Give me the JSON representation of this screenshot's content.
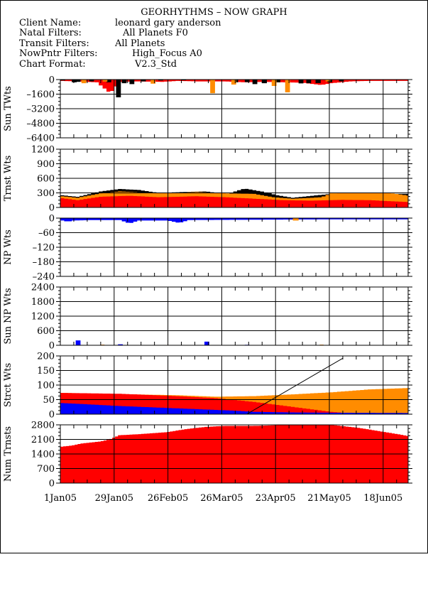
{
  "header": {
    "title": "GEORHYTHMS – NOW GRAPH",
    "rows": [
      {
        "label": "Client Name:",
        "value": "leonard gary anderson"
      },
      {
        "label": "Natal Filters:",
        "value": "All Planets F0"
      },
      {
        "label": "Transit Filters:",
        "value": "All Planets"
      },
      {
        "label": "NowPntr Filters:",
        "value": "High_Focus A0"
      },
      {
        "label": "Chart Format:",
        "value": "V2.3_Std"
      }
    ]
  },
  "colors": {
    "red": "#ff0000",
    "orange": "#ff8c00",
    "black": "#000000",
    "blue": "#0000ff",
    "grid": "#000000"
  },
  "chart_data": {
    "type": "area",
    "x_tick_labels": [
      "1Jan05",
      "29Jan05",
      "26Feb05",
      "26Mar05",
      "23Apr05",
      "21May05",
      "18Jun05"
    ],
    "x_range_days": [
      0,
      181
    ],
    "panels": [
      {
        "id": "sun-twts",
        "ylabel": "Sun TWts",
        "ylim": [
          -6400,
          0
        ],
        "yticks": [
          0,
          -1600,
          -3200,
          -4800,
          -6400
        ],
        "tick_labels": [
          "0",
          "–1600",
          "–3200",
          "–4800",
          "–6400"
        ]
      },
      {
        "id": "trnst-wts",
        "ylabel": "Trnst Wts",
        "ylim": [
          0,
          1200
        ],
        "yticks": [
          1200,
          900,
          600,
          300,
          0
        ],
        "tick_labels": [
          "1200",
          "900",
          "600",
          "300",
          "0"
        ]
      },
      {
        "id": "np-wts",
        "ylabel": "NP Wts",
        "ylim": [
          -240,
          0
        ],
        "yticks": [
          0,
          -60,
          -120,
          -180,
          -240
        ],
        "tick_labels": [
          "0",
          "–60",
          "–120",
          "–180",
          "–240"
        ]
      },
      {
        "id": "sun-np-wts",
        "ylabel": "Sun NP Wts",
        "ylim": [
          0,
          2400
        ],
        "yticks": [
          2400,
          1800,
          1200,
          600,
          0
        ],
        "tick_labels": [
          "2400",
          "1800",
          "1200",
          "600",
          "0"
        ]
      },
      {
        "id": "strct-wts",
        "ylabel": "Strct Wts",
        "ylim": [
          0,
          200
        ],
        "yticks": [
          200,
          150,
          100,
          50,
          0
        ],
        "tick_labels": [
          "200",
          "150",
          "100",
          "50",
          "0"
        ]
      },
      {
        "id": "num-trnsts",
        "ylabel": "Num Trnsts",
        "ylim": [
          0,
          2800
        ],
        "yticks": [
          2800,
          2100,
          1400,
          700,
          0
        ],
        "tick_labels": [
          "2800",
          "2100",
          "1400",
          "700",
          "0"
        ]
      }
    ],
    "sun_twts": {
      "red": [
        [
          0,
          -150
        ],
        [
          7,
          -200
        ],
        [
          18,
          -300
        ],
        [
          25,
          -1500
        ],
        [
          30,
          -250
        ],
        [
          38,
          -200
        ],
        [
          52,
          -250
        ],
        [
          60,
          -150
        ],
        [
          70,
          -200
        ],
        [
          85,
          -200
        ],
        [
          95,
          -300
        ],
        [
          105,
          -250
        ],
        [
          115,
          -300
        ],
        [
          125,
          -350
        ],
        [
          135,
          -600
        ],
        [
          140,
          -400
        ],
        [
          150,
          -200
        ],
        [
          160,
          -150
        ],
        [
          170,
          -150
        ],
        [
          181,
          -150
        ]
      ],
      "black_bars": [
        [
          0,
          -100
        ],
        [
          6,
          -300
        ],
        [
          8,
          -250
        ],
        [
          15,
          -200
        ],
        [
          24,
          -300
        ],
        [
          29,
          -1950
        ],
        [
          32,
          -400
        ],
        [
          36,
          -500
        ],
        [
          42,
          -200
        ],
        [
          51,
          -100
        ],
        [
          63,
          -80
        ],
        [
          90,
          -300
        ],
        [
          96,
          -280
        ],
        [
          100,
          -500
        ],
        [
          105,
          -400
        ],
        [
          112,
          -300
        ],
        [
          124,
          -420
        ],
        [
          128,
          -400
        ],
        [
          133,
          -380
        ],
        [
          139,
          -300
        ],
        [
          145,
          -200
        ]
      ],
      "orange_bars": [
        [
          11,
          -400
        ],
        [
          22,
          -220
        ],
        [
          47,
          -450
        ],
        [
          78,
          -1500
        ],
        [
          89,
          -550
        ],
        [
          110,
          -700
        ],
        [
          117,
          -1400
        ],
        [
          138,
          -200
        ]
      ]
    },
    "trnst_wts": {
      "red": [
        [
          0,
          190
        ],
        [
          8,
          150
        ],
        [
          20,
          220
        ],
        [
          35,
          240
        ],
        [
          50,
          210
        ],
        [
          70,
          230
        ],
        [
          85,
          210
        ],
        [
          100,
          180
        ],
        [
          115,
          150
        ],
        [
          130,
          140
        ],
        [
          145,
          155
        ],
        [
          160,
          150
        ],
        [
          170,
          130
        ],
        [
          181,
          110
        ]
      ],
      "orange": [
        [
          0,
          230
        ],
        [
          8,
          200
        ],
        [
          20,
          290
        ],
        [
          30,
          330
        ],
        [
          45,
          300
        ],
        [
          60,
          300
        ],
        [
          70,
          320
        ],
        [
          85,
          290
        ],
        [
          100,
          280
        ],
        [
          110,
          210
        ],
        [
          120,
          180
        ],
        [
          135,
          210
        ],
        [
          140,
          290
        ],
        [
          155,
          300
        ],
        [
          170,
          300
        ],
        [
          181,
          240
        ]
      ],
      "black": [
        [
          0,
          250
        ],
        [
          8,
          220
        ],
        [
          20,
          330
        ],
        [
          30,
          380
        ],
        [
          40,
          360
        ],
        [
          50,
          300
        ],
        [
          65,
          320
        ],
        [
          75,
          330
        ],
        [
          85,
          270
        ],
        [
          95,
          390
        ],
        [
          105,
          320
        ],
        [
          112,
          250
        ],
        [
          120,
          200
        ],
        [
          140,
          280
        ]
      ]
    },
    "np_wts": {
      "blue": [
        [
          0,
          -10
        ],
        [
          3,
          -15
        ],
        [
          6,
          -10
        ],
        [
          15,
          -8
        ],
        [
          30,
          -8
        ],
        [
          35,
          -22
        ],
        [
          40,
          -10
        ],
        [
          55,
          -10
        ],
        [
          61,
          -20
        ],
        [
          66,
          -8
        ],
        [
          140,
          -5
        ]
      ],
      "orange": [
        [
          121,
          -10
        ]
      ]
    },
    "sun_np_wts": {
      "blue_bars": [
        [
          8,
          200
        ],
        [
          30,
          40
        ],
        [
          75,
          150
        ],
        [
          96,
          20
        ]
      ],
      "orange_bars": [
        [
          21,
          25
        ],
        [
          55,
          15
        ],
        [
          135,
          25
        ]
      ]
    },
    "strct_wts": {
      "blue": [
        [
          0,
          38
        ],
        [
          10,
          35
        ],
        [
          30,
          28
        ],
        [
          60,
          20
        ],
        [
          90,
          12
        ],
        [
          100,
          8
        ],
        [
          120,
          6
        ],
        [
          140,
          5
        ],
        [
          181,
          4
        ]
      ],
      "red": [
        [
          0,
          73
        ],
        [
          30,
          70
        ],
        [
          60,
          62
        ],
        [
          80,
          55
        ],
        [
          100,
          42
        ],
        [
          120,
          25
        ],
        [
          140,
          8
        ],
        [
          150,
          3
        ],
        [
          181,
          0
        ]
      ],
      "orange": [
        [
          0,
          73
        ],
        [
          60,
          65
        ],
        [
          80,
          60
        ],
        [
          100,
          62
        ],
        [
          120,
          68
        ],
        [
          140,
          75
        ],
        [
          160,
          85
        ],
        [
          181,
          90
        ]
      ],
      "trend_line": [
        [
          97,
          0
        ],
        [
          147,
          192
        ]
      ]
    },
    "num_trnsts": {
      "red": [
        [
          0,
          1750
        ],
        [
          5,
          1800
        ],
        [
          10,
          1900
        ],
        [
          20,
          2000
        ],
        [
          25,
          2100
        ],
        [
          30,
          2300
        ],
        [
          40,
          2350
        ],
        [
          55,
          2450
        ],
        [
          65,
          2600
        ],
        [
          75,
          2700
        ],
        [
          85,
          2750
        ],
        [
          100,
          2750
        ],
        [
          120,
          2800
        ],
        [
          140,
          2800
        ],
        [
          155,
          2650
        ],
        [
          165,
          2500
        ],
        [
          175,
          2350
        ],
        [
          181,
          2250
        ]
      ]
    }
  }
}
